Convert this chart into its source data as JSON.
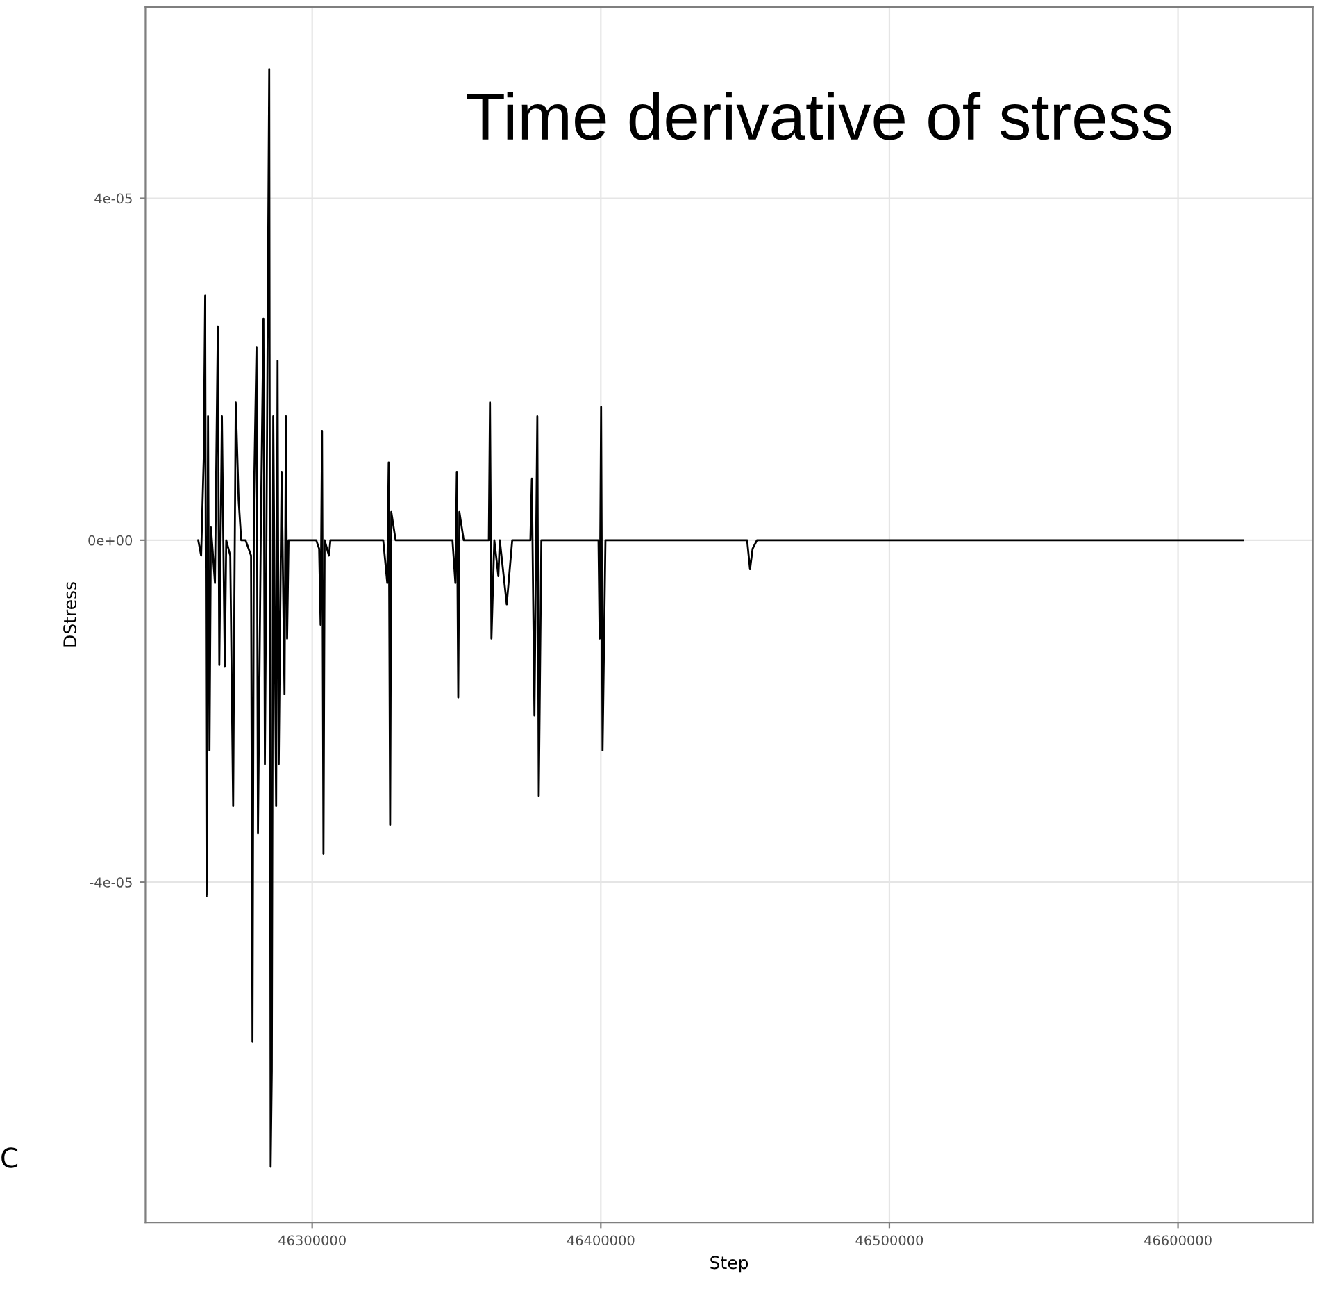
{
  "chart_data": {
    "type": "line",
    "title": "Time derivative of stress",
    "xlabel": "Step",
    "ylabel": "DStress",
    "annotations": [
      "C"
    ],
    "x": [
      46260500,
      46261500,
      46262400,
      46262900,
      46263400,
      46263900,
      46264400,
      46264900,
      46266300,
      46267300,
      46267800,
      46268700,
      46269700,
      46270200,
      46271600,
      46272600,
      46273000,
      46273500,
      46274500,
      46275400,
      46276900,
      46278800,
      46279300,
      46279800,
      46280700,
      46281200,
      46282200,
      46283100,
      46283600,
      46284100,
      46285100,
      46285600,
      46286000,
      46286500,
      46287500,
      46288000,
      46288400,
      46289400,
      46290400,
      46290900,
      46291300,
      46291800,
      46293700,
      46301400,
      46302400,
      46302900,
      46303400,
      46303900,
      46304300,
      46305800,
      46306300,
      46324600,
      46326000,
      46326500,
      46327000,
      46327400,
      46328900,
      46348600,
      46349600,
      46350100,
      46350600,
      46351000,
      46352500,
      46361200,
      46361600,
      46362100,
      46363100,
      46364500,
      46365000,
      46367400,
      46369300,
      46375600,
      46376100,
      46377000,
      46378000,
      46378500,
      46379400,
      46399200,
      46399600,
      46400100,
      46400600,
      46401600,
      46450700,
      46451700,
      46452600,
      46454100,
      46622600
    ],
    "series": [
      {
        "color": "#000000",
        "values": [
          0,
          -1.8e-06,
          9.6e-06,
          2.86e-05,
          -4.16e-05,
          1.45e-05,
          -2.46e-05,
          1.5e-06,
          -5e-06,
          2.5e-05,
          -1.46e-05,
          1.45e-05,
          -1.48e-05,
          0,
          -1.8e-06,
          -3.11e-05,
          -8.3e-06,
          1.61e-05,
          4.7e-06,
          0,
          0,
          -1.8e-06,
          -5.87e-05,
          4.7e-06,
          2.26e-05,
          -3.43e-05,
          1.5e-06,
          2.59e-05,
          -2.62e-05,
          -1.8e-06,
          5.51e-05,
          -7.33e-05,
          -6.2e-05,
          1.45e-05,
          -3.11e-05,
          2.1e-05,
          -2.62e-05,
          8e-06,
          -1.8e-05,
          1.45e-05,
          -1.15e-05,
          0,
          0,
          0,
          -1e-06,
          -9.9e-06,
          1.28e-05,
          -3.67e-05,
          0,
          -1.8e-06,
          0,
          0,
          -5e-06,
          9.1e-06,
          -3.33e-05,
          3.3e-06,
          0,
          0,
          -5e-06,
          8e-06,
          -1.84e-05,
          3.3e-06,
          0,
          0,
          1.61e-05,
          -1.15e-05,
          0,
          -4.2e-06,
          0,
          -7.5e-06,
          0,
          0,
          7.2e-06,
          -2.05e-05,
          1.45e-05,
          -2.99e-05,
          0,
          0,
          -1.15e-05,
          1.56e-05,
          -2.46e-05,
          0,
          0,
          -3.4e-06,
          -1e-06,
          0,
          0
        ]
      }
    ],
    "xlim": [
      46242200,
      46646700
    ],
    "ylim": [
      -7.98e-05,
      6.24e-05
    ],
    "xticks": [
      46300000,
      46400000,
      46500000,
      46600000
    ],
    "yticks": [
      {
        "value": -4e-05,
        "label": "-4e-05"
      },
      {
        "value": 0,
        "label": "0e+00"
      },
      {
        "value": 4e-05,
        "label": "4e-05"
      }
    ],
    "grid": true,
    "marker": "none",
    "line_style": "solid"
  }
}
